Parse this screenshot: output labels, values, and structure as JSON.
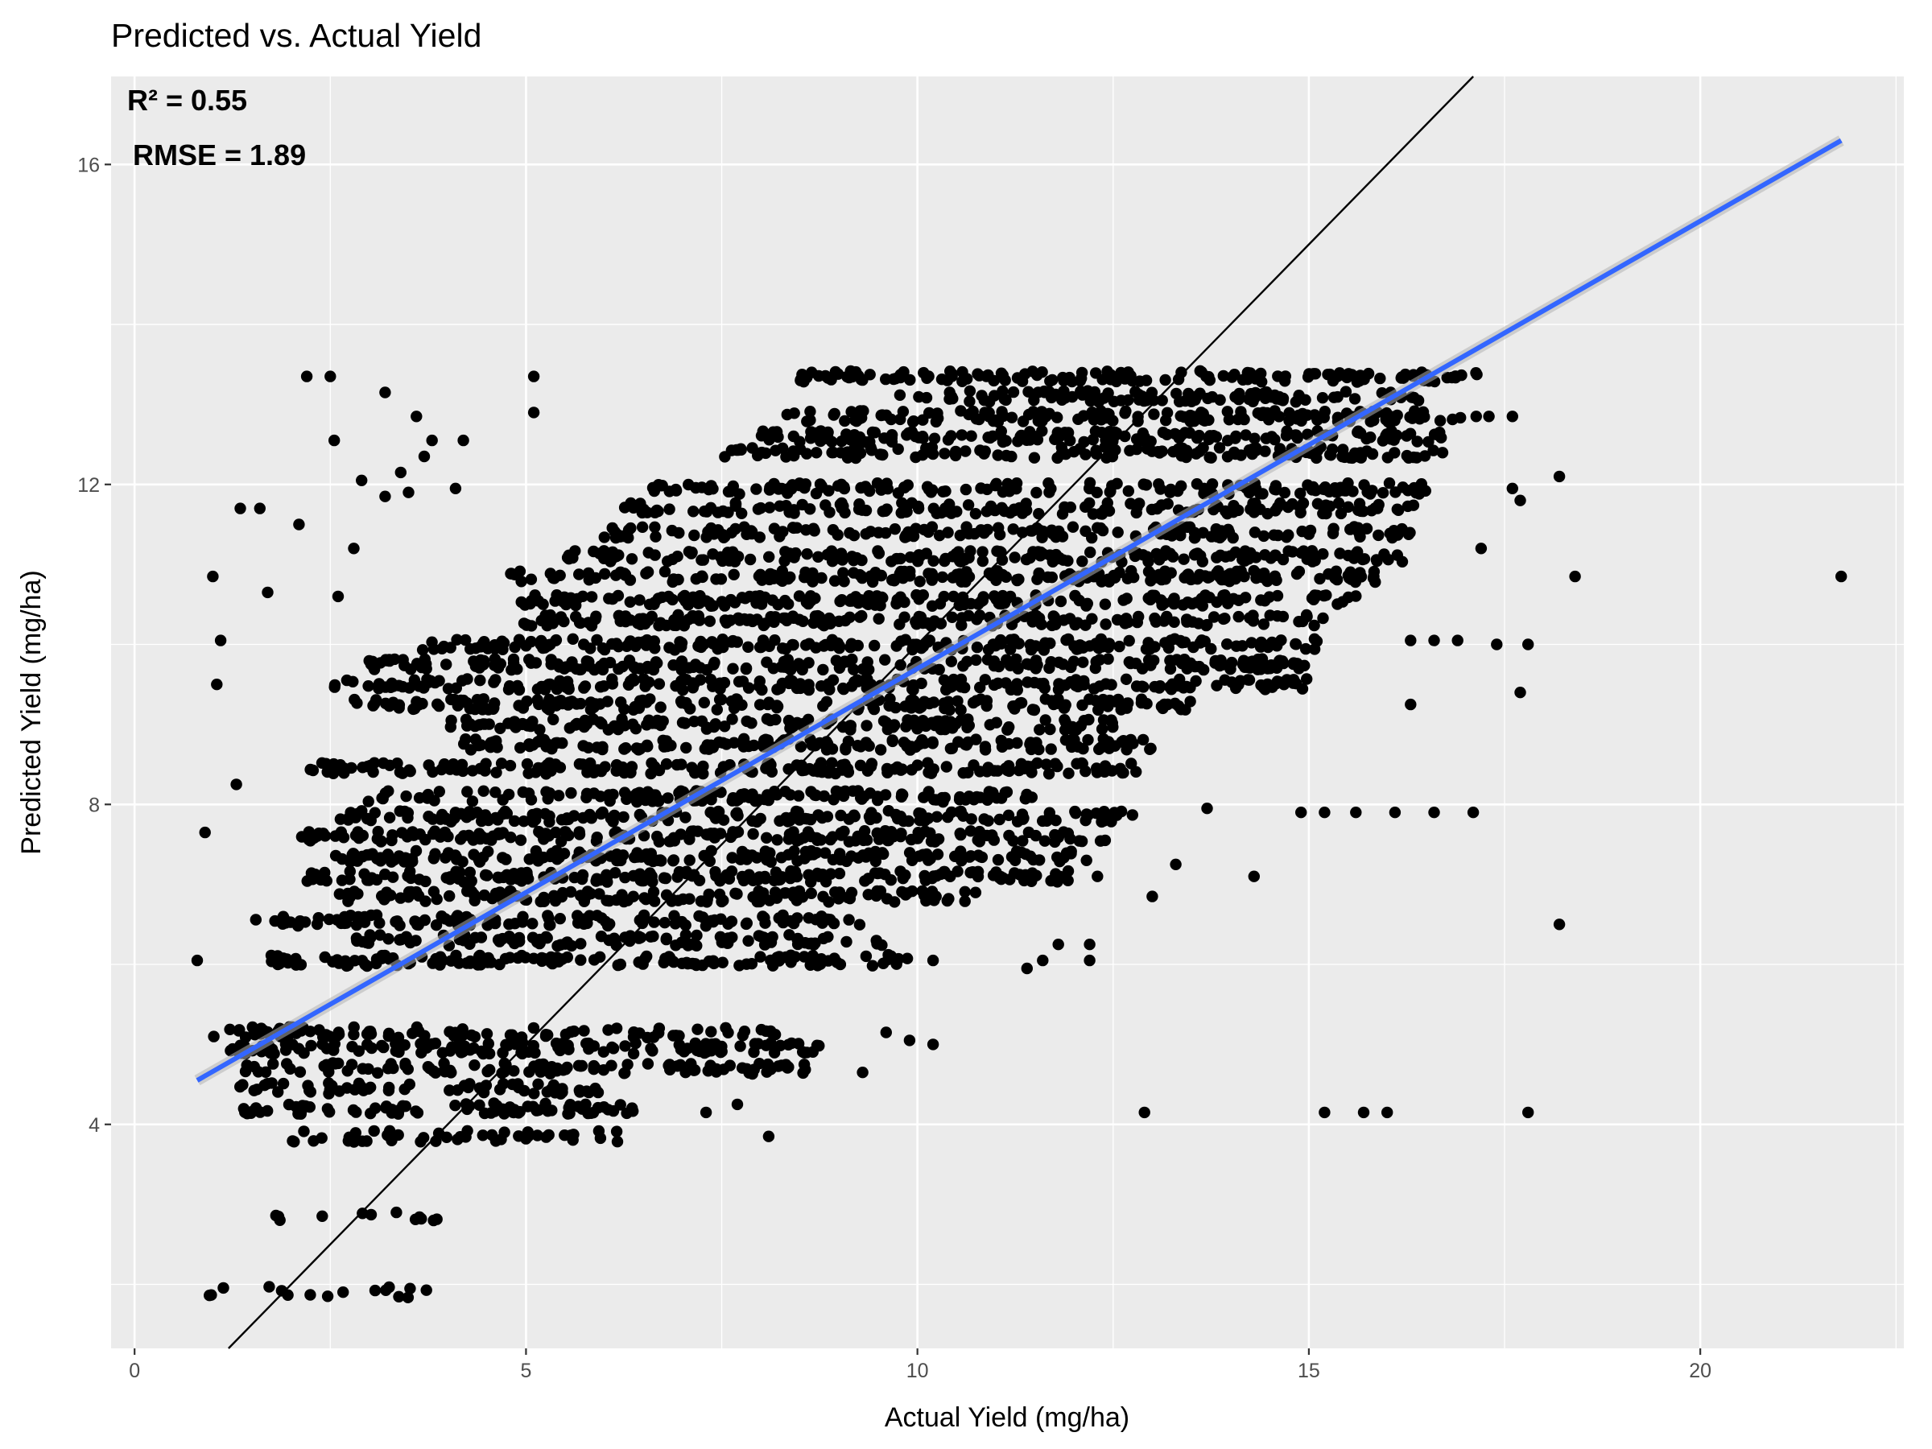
{
  "chart_data": {
    "type": "scatter",
    "title": "Predicted vs. Actual Yield",
    "xlabel": "Actual Yield (mg/ha)",
    "ylabel": "Predicted Yield (mg/ha)",
    "xlim": [
      -0.3,
      22.6
    ],
    "ylim": [
      1.2,
      17.1
    ],
    "x_ticks": [
      0,
      5,
      10,
      15,
      20
    ],
    "y_ticks": [
      4,
      8,
      12,
      16
    ],
    "x_tick_labels": [
      "0",
      "5",
      "10",
      "15",
      "20"
    ],
    "y_tick_labels": [
      "4",
      "8",
      "12",
      "16"
    ],
    "grid": true,
    "legend": "none",
    "annotations": [
      {
        "text": "R² = 0.55",
        "position": "top-left"
      },
      {
        "text": "RMSE = 1.89",
        "position": "top-left"
      }
    ],
    "reference_line": {
      "kind": "identity",
      "slope": 1,
      "intercept": 0,
      "color": "#000000"
    },
    "regression_line": {
      "kind": "linear fit",
      "x": [
        0.8,
        21.8
      ],
      "y": [
        4.55,
        16.3
      ],
      "color": "#3366FF"
    },
    "bands": [
      {
        "y": 1.9,
        "xmin": 0.8,
        "xmax": 4.0,
        "density": 0.3
      },
      {
        "y": 2.85,
        "xmin": 1.8,
        "xmax": 4.0,
        "density": 0.35
      },
      {
        "y": 3.85,
        "xmin": 1.7,
        "xmax": 6.4,
        "density": 0.6
      },
      {
        "y": 4.2,
        "xmin": 1.2,
        "xmax": 6.5,
        "density": 0.9
      },
      {
        "y": 4.45,
        "xmin": 1.3,
        "xmax": 6.0,
        "density": 0.8
      },
      {
        "y": 4.7,
        "xmin": 1.4,
        "xmax": 8.6,
        "density": 0.9
      },
      {
        "y": 4.95,
        "xmin": 1.2,
        "xmax": 8.8,
        "density": 1.0
      },
      {
        "y": 5.15,
        "xmin": 1.0,
        "xmax": 8.2,
        "density": 0.8
      },
      {
        "y": 6.05,
        "xmin": 1.6,
        "xmax": 9.9,
        "density": 1.0
      },
      {
        "y": 6.3,
        "xmin": 2.8,
        "xmax": 9.6,
        "density": 0.9
      },
      {
        "y": 6.55,
        "xmin": 1.5,
        "xmax": 9.4,
        "density": 0.9
      },
      {
        "y": 6.85,
        "xmin": 2.5,
        "xmax": 10.8,
        "density": 1.0
      },
      {
        "y": 7.1,
        "xmin": 2.2,
        "xmax": 12.0,
        "density": 1.0
      },
      {
        "y": 7.35,
        "xmin": 2.4,
        "xmax": 12.2,
        "density": 1.0
      },
      {
        "y": 7.6,
        "xmin": 2.1,
        "xmax": 12.5,
        "density": 1.0
      },
      {
        "y": 7.85,
        "xmin": 2.6,
        "xmax": 12.8,
        "density": 1.0
      },
      {
        "y": 8.1,
        "xmin": 2.8,
        "xmax": 11.5,
        "density": 1.0
      },
      {
        "y": 8.45,
        "xmin": 2.2,
        "xmax": 12.8,
        "density": 1.0
      },
      {
        "y": 8.75,
        "xmin": 4.2,
        "xmax": 13.0,
        "density": 1.0
      },
      {
        "y": 9.0,
        "xmin": 4.0,
        "xmax": 12.5,
        "density": 1.0
      },
      {
        "y": 9.25,
        "xmin": 2.8,
        "xmax": 13.5,
        "density": 1.0
      },
      {
        "y": 9.5,
        "xmin": 2.5,
        "xmax": 15.0,
        "density": 1.0
      },
      {
        "y": 9.75,
        "xmin": 2.9,
        "xmax": 15.0,
        "density": 1.0
      },
      {
        "y": 10.0,
        "xmin": 3.6,
        "xmax": 15.2,
        "density": 1.0
      },
      {
        "y": 10.3,
        "xmin": 4.9,
        "xmax": 15.3,
        "density": 1.0
      },
      {
        "y": 10.55,
        "xmin": 4.8,
        "xmax": 15.6,
        "density": 1.0
      },
      {
        "y": 10.85,
        "xmin": 4.6,
        "xmax": 16.0,
        "density": 1.0
      },
      {
        "y": 11.1,
        "xmin": 5.5,
        "xmax": 16.2,
        "density": 1.0
      },
      {
        "y": 11.4,
        "xmin": 6.0,
        "xmax": 16.3,
        "density": 0.9
      },
      {
        "y": 11.7,
        "xmin": 6.2,
        "xmax": 16.4,
        "density": 0.9
      },
      {
        "y": 11.95,
        "xmin": 6.5,
        "xmax": 16.5,
        "density": 0.9
      },
      {
        "y": 12.4,
        "xmin": 7.5,
        "xmax": 16.8,
        "density": 0.9
      },
      {
        "y": 12.6,
        "xmin": 8.0,
        "xmax": 16.8,
        "density": 1.0
      },
      {
        "y": 12.85,
        "xmin": 8.2,
        "xmax": 17.3,
        "density": 1.0
      },
      {
        "y": 13.1,
        "xmin": 9.5,
        "xmax": 16.5,
        "density": 0.9
      },
      {
        "y": 13.35,
        "xmin": 8.5,
        "xmax": 17.2,
        "density": 1.0
      }
    ],
    "outliers": [
      [
        0.8,
        6.05
      ],
      [
        0.9,
        7.65
      ],
      [
        1.0,
        10.85
      ],
      [
        1.05,
        9.5
      ],
      [
        1.1,
        10.05
      ],
      [
        1.3,
        8.25
      ],
      [
        1.35,
        11.7
      ],
      [
        1.6,
        11.7
      ],
      [
        1.7,
        10.65
      ],
      [
        2.1,
        11.5
      ],
      [
        2.2,
        13.35
      ],
      [
        2.5,
        13.35
      ],
      [
        2.55,
        12.55
      ],
      [
        2.6,
        10.6
      ],
      [
        2.8,
        11.2
      ],
      [
        2.9,
        12.05
      ],
      [
        3.2,
        13.15
      ],
      [
        3.2,
        11.85
      ],
      [
        3.4,
        12.15
      ],
      [
        3.5,
        11.9
      ],
      [
        3.6,
        12.85
      ],
      [
        3.7,
        12.35
      ],
      [
        3.8,
        12.55
      ],
      [
        4.2,
        12.55
      ],
      [
        4.1,
        11.95
      ],
      [
        5.1,
        13.35
      ],
      [
        5.1,
        12.9
      ],
      [
        8.1,
        3.85
      ],
      [
        7.3,
        4.15
      ],
      [
        7.7,
        4.25
      ],
      [
        9.3,
        4.65
      ],
      [
        9.6,
        5.15
      ],
      [
        9.9,
        5.05
      ],
      [
        10.2,
        5.0
      ],
      [
        10.2,
        6.05
      ],
      [
        11.4,
        5.95
      ],
      [
        11.6,
        6.05
      ],
      [
        11.8,
        6.25
      ],
      [
        12.2,
        6.05
      ],
      [
        12.2,
        6.25
      ],
      [
        12.9,
        4.15
      ],
      [
        15.2,
        4.15
      ],
      [
        15.7,
        4.15
      ],
      [
        16.0,
        4.15
      ],
      [
        17.8,
        4.15
      ],
      [
        18.2,
        6.5
      ],
      [
        21.8,
        10.85
      ],
      [
        18.4,
        10.85
      ],
      [
        18.2,
        12.1
      ],
      [
        17.6,
        11.95
      ],
      [
        17.7,
        11.8
      ],
      [
        17.3,
        12.85
      ],
      [
        17.6,
        12.85
      ],
      [
        17.2,
        11.2
      ],
      [
        17.4,
        10.0
      ],
      [
        17.8,
        10.0
      ],
      [
        17.7,
        9.4
      ],
      [
        17.1,
        7.9
      ],
      [
        16.1,
        7.9
      ],
      [
        15.6,
        7.9
      ],
      [
        15.2,
        7.9
      ],
      [
        14.9,
        7.9
      ],
      [
        16.3,
        9.25
      ],
      [
        16.6,
        7.9
      ],
      [
        16.3,
        10.05
      ],
      [
        16.6,
        10.05
      ],
      [
        16.9,
        10.05
      ],
      [
        13.0,
        6.85
      ],
      [
        12.3,
        7.1
      ],
      [
        14.3,
        7.1
      ],
      [
        13.7,
        7.95
      ],
      [
        13.3,
        7.25
      ]
    ]
  }
}
